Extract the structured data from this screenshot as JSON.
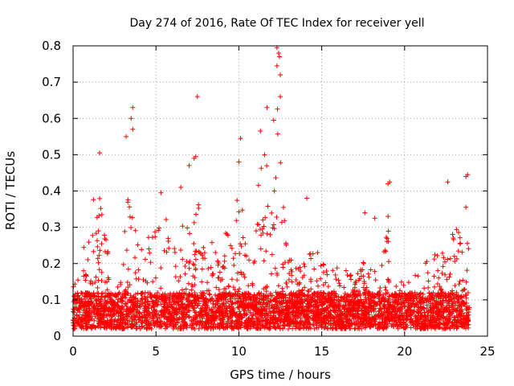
{
  "chart_data": {
    "type": "scatter",
    "title": "Day 274 of 2016, Rate Of TEC Index for receiver yell",
    "xlabel": "GPS time / hours",
    "ylabel": "ROTI / TECUs",
    "xlim": [
      0,
      25
    ],
    "ylim": [
      0,
      0.8
    ],
    "x_ticks": [
      0,
      5,
      10,
      15,
      20,
      25
    ],
    "y_ticks": [
      0,
      0.1,
      0.2,
      0.3,
      0.4,
      0.5,
      0.6,
      0.7,
      0.8
    ],
    "x_tick_labels": [
      "0",
      "5",
      "10",
      "15",
      "20",
      "25"
    ],
    "y_tick_labels": [
      "0",
      "0.1",
      "0.2",
      "0.3",
      "0.4",
      "0.5",
      "0.6",
      "0.7",
      "0.8"
    ],
    "grid": true,
    "marker": "+",
    "color": "#ff0000",
    "x_range_of_data": [
      0,
      23.9
    ],
    "profile": [
      {
        "x": 0.0,
        "y": 0.1
      },
      {
        "x": 0.5,
        "y": 0.18
      },
      {
        "x": 1.0,
        "y": 0.25
      },
      {
        "x": 1.5,
        "y": 0.38
      },
      {
        "x": 2.0,
        "y": 0.22
      },
      {
        "x": 2.5,
        "y": 0.1
      },
      {
        "x": 3.0,
        "y": 0.2
      },
      {
        "x": 3.5,
        "y": 0.45
      },
      {
        "x": 4.0,
        "y": 0.28
      },
      {
        "x": 4.5,
        "y": 0.22
      },
      {
        "x": 5.0,
        "y": 0.24
      },
      {
        "x": 5.5,
        "y": 0.3
      },
      {
        "x": 6.0,
        "y": 0.18
      },
      {
        "x": 6.5,
        "y": 0.25
      },
      {
        "x": 7.0,
        "y": 0.28
      },
      {
        "x": 7.5,
        "y": 0.32
      },
      {
        "x": 8.0,
        "y": 0.18
      },
      {
        "x": 8.5,
        "y": 0.22
      },
      {
        "x": 9.0,
        "y": 0.2
      },
      {
        "x": 9.5,
        "y": 0.28
      },
      {
        "x": 10.0,
        "y": 0.35
      },
      {
        "x": 10.5,
        "y": 0.2
      },
      {
        "x": 11.0,
        "y": 0.3
      },
      {
        "x": 11.5,
        "y": 0.45
      },
      {
        "x": 12.0,
        "y": 0.4
      },
      {
        "x": 12.3,
        "y": 0.55
      },
      {
        "x": 12.6,
        "y": 0.35
      },
      {
        "x": 13.0,
        "y": 0.18
      },
      {
        "x": 13.5,
        "y": 0.15
      },
      {
        "x": 14.0,
        "y": 0.18
      },
      {
        "x": 14.5,
        "y": 0.2
      },
      {
        "x": 15.0,
        "y": 0.18
      },
      {
        "x": 15.5,
        "y": 0.15
      },
      {
        "x": 16.0,
        "y": 0.15
      },
      {
        "x": 16.5,
        "y": 0.14
      },
      {
        "x": 17.0,
        "y": 0.12
      },
      {
        "x": 17.5,
        "y": 0.16
      },
      {
        "x": 18.0,
        "y": 0.15
      },
      {
        "x": 18.5,
        "y": 0.16
      },
      {
        "x": 19.0,
        "y": 0.25
      },
      {
        "x": 19.5,
        "y": 0.13
      },
      {
        "x": 20.0,
        "y": 0.12
      },
      {
        "x": 20.5,
        "y": 0.14
      },
      {
        "x": 21.0,
        "y": 0.16
      },
      {
        "x": 21.5,
        "y": 0.2
      },
      {
        "x": 22.0,
        "y": 0.18
      },
      {
        "x": 22.5,
        "y": 0.22
      },
      {
        "x": 23.0,
        "y": 0.28
      },
      {
        "x": 23.5,
        "y": 0.22
      },
      {
        "x": 23.9,
        "y": 0.2
      }
    ],
    "notable_points": [
      {
        "x": 12.3,
        "y": 0.795
      },
      {
        "x": 12.4,
        "y": 0.78
      },
      {
        "x": 12.45,
        "y": 0.77
      },
      {
        "x": 12.3,
        "y": 0.745
      },
      {
        "x": 12.5,
        "y": 0.72
      },
      {
        "x": 7.5,
        "y": 0.66
      },
      {
        "x": 12.5,
        "y": 0.66
      },
      {
        "x": 11.7,
        "y": 0.63
      },
      {
        "x": 3.6,
        "y": 0.63
      },
      {
        "x": 3.5,
        "y": 0.6
      },
      {
        "x": 3.6,
        "y": 0.57
      },
      {
        "x": 12.1,
        "y": 0.595
      },
      {
        "x": 11.3,
        "y": 0.565
      },
      {
        "x": 3.2,
        "y": 0.55
      },
      {
        "x": 10.1,
        "y": 0.545
      },
      {
        "x": 1.6,
        "y": 0.505
      },
      {
        "x": 7.4,
        "y": 0.495
      },
      {
        "x": 7.3,
        "y": 0.49
      },
      {
        "x": 7.0,
        "y": 0.47
      },
      {
        "x": 10.0,
        "y": 0.48
      },
      {
        "x": 23.8,
        "y": 0.445
      },
      {
        "x": 23.7,
        "y": 0.44
      },
      {
        "x": 19.1,
        "y": 0.425
      },
      {
        "x": 19.0,
        "y": 0.42
      },
      {
        "x": 22.6,
        "y": 0.425
      },
      {
        "x": 14.1,
        "y": 0.38
      },
      {
        "x": 23.7,
        "y": 0.355
      },
      {
        "x": 17.6,
        "y": 0.34
      },
      {
        "x": 19.0,
        "y": 0.33
      },
      {
        "x": 18.2,
        "y": 0.325
      },
      {
        "x": 5.3,
        "y": 0.395
      },
      {
        "x": 6.5,
        "y": 0.41
      }
    ]
  }
}
